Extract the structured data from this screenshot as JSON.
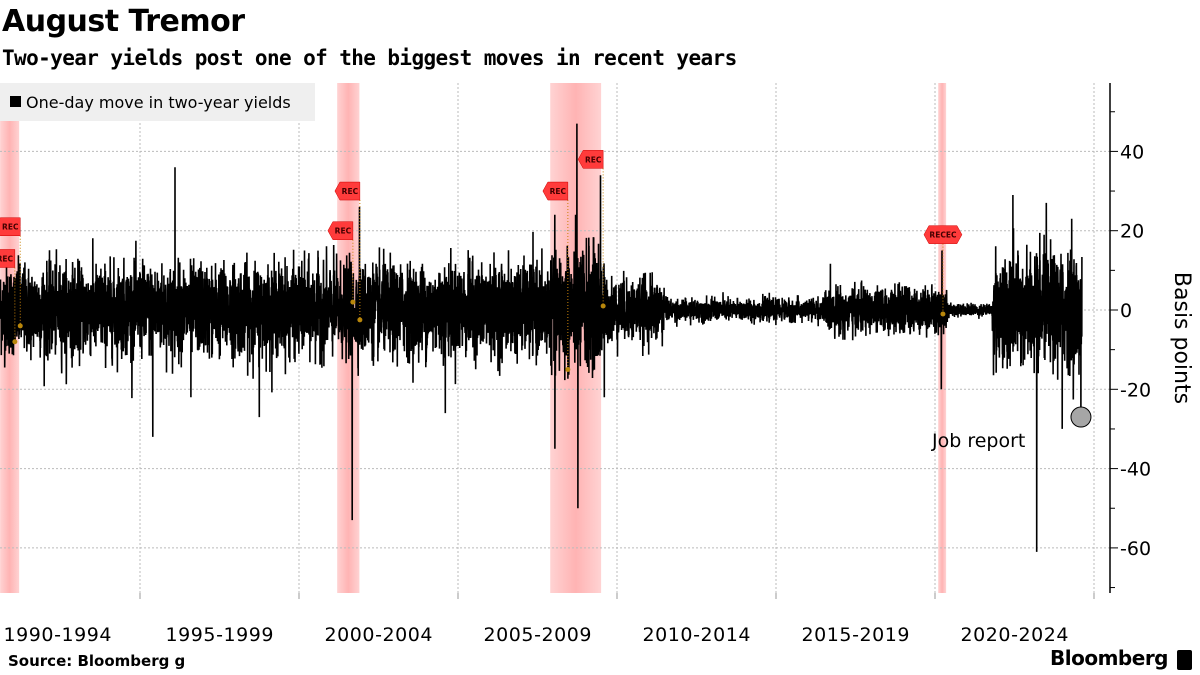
{
  "header": {
    "title": "August Tremor",
    "subtitle": "Two-year yields post one of the biggest moves in recent years"
  },
  "footer": {
    "source": "Source: Bloomberg g",
    "brand": "Bloomberg"
  },
  "chart_data": {
    "type": "line",
    "title": "August Tremor",
    "subtitle": "Two-year yields post one of the biggest moves in recent years",
    "ylabel": "Basis points",
    "xlabel": "",
    "ylim": [
      -71,
      57
    ],
    "xlim": [
      1990.6,
      2025.6
    ],
    "grid": true,
    "legend": {
      "placement": "top-left",
      "entries": [
        "One-day move in two-year yields"
      ]
    },
    "series_color": "#000000",
    "recession_color": "#ffcccc",
    "yticks": [
      40,
      20,
      0,
      -20,
      -40,
      -60
    ],
    "xtick_labels": [
      {
        "label": "1990-1994",
        "center": 1992.5
      },
      {
        "label": "1995-1999",
        "center": 1997.5
      },
      {
        "label": "2000-2004",
        "center": 2002.5
      },
      {
        "label": "2005-2009",
        "center": 2007.5
      },
      {
        "label": "2010-2014",
        "center": 2012.5
      },
      {
        "label": "2015-2019",
        "center": 2017.5
      },
      {
        "label": "2020-2024",
        "center": 2022.5
      }
    ],
    "recessions": [
      [
        1990.6,
        1991.2
      ],
      [
        2001.2,
        2001.9
      ],
      [
        2007.9,
        2009.5
      ],
      [
        2020.1,
        2020.35
      ]
    ],
    "volatility_regimes": [
      {
        "from": 1990.6,
        "to": 2001.0,
        "std": 6.5
      },
      {
        "from": 2001.0,
        "to": 2008.0,
        "std": 6.5
      },
      {
        "from": 2008.0,
        "to": 2009.6,
        "std": 9
      },
      {
        "from": 2009.6,
        "to": 2011.5,
        "std": 4.5
      },
      {
        "from": 2011.5,
        "to": 2016.5,
        "std": 1.6
      },
      {
        "from": 2016.5,
        "to": 2020.4,
        "std": 3.2
      },
      {
        "from": 2020.4,
        "to": 2021.8,
        "std": 0.9
      },
      {
        "from": 2021.8,
        "to": 2024.62,
        "std": 8
      }
    ],
    "notable_moves": [
      {
        "date": 1995.4,
        "value": -32
      },
      {
        "date": 1996.1,
        "value": 36
      },
      {
        "date": 1996.6,
        "value": -22
      },
      {
        "date": 1998.75,
        "value": -27
      },
      {
        "date": 2001.67,
        "value": -53
      },
      {
        "date": 2001.9,
        "value": 26
      },
      {
        "date": 2004.6,
        "value": -26
      },
      {
        "date": 2008.05,
        "value": -35
      },
      {
        "date": 2008.74,
        "value": 47
      },
      {
        "date": 2008.77,
        "value": -50
      },
      {
        "date": 2009.48,
        "value": 34
      },
      {
        "date": 2009.6,
        "value": -22
      },
      {
        "date": 2020.2,
        "value": -20
      },
      {
        "date": 2020.22,
        "value": 15
      },
      {
        "date": 2022.45,
        "value": 29
      },
      {
        "date": 2023.2,
        "value": -61
      },
      {
        "date": 2023.5,
        "value": 27
      },
      {
        "date": 2024.0,
        "value": -30
      },
      {
        "date": 2024.3,
        "value": 23
      },
      {
        "date": 2024.59,
        "value": -27
      }
    ],
    "recession_markers": [
      {
        "label": "REC",
        "date": 1990.92,
        "value": 21,
        "dot": -4
      },
      {
        "label": "REC",
        "date": 1990.75,
        "value": 13,
        "dot": -8
      },
      {
        "label": "REC",
        "date": 2001.6,
        "value": 30,
        "dot": -2.5
      },
      {
        "label": "REC",
        "date": 2001.38,
        "value": 20,
        "dot": 2
      },
      {
        "label": "REC",
        "date": 2008.14,
        "value": 30,
        "dot": -15
      },
      {
        "label": "REC",
        "date": 2009.25,
        "value": 38,
        "dot": 1
      },
      {
        "label": "RECEC",
        "date": 2020.25,
        "value": 19,
        "dot": -1
      }
    ],
    "annotations": [
      {
        "label": "Job report",
        "date": 2024.59,
        "value": -27
      }
    ]
  }
}
